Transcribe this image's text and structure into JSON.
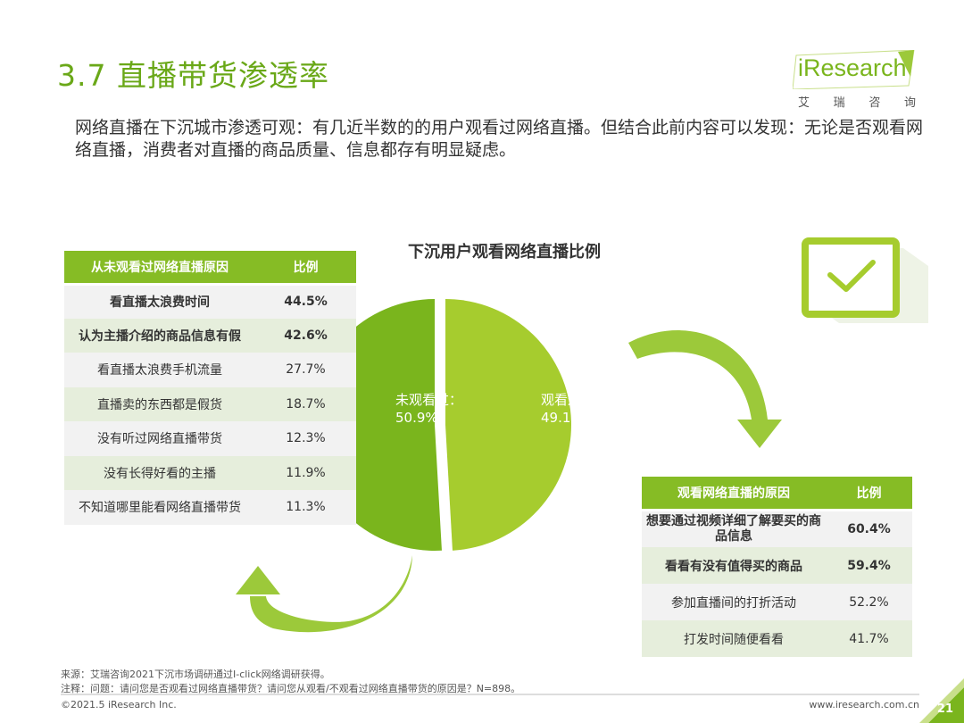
{
  "header": {
    "title": "3.7 直播带货渗透率",
    "logo_text": "iResearch",
    "logo_sub": [
      "艾",
      "瑞",
      "咨",
      "询"
    ]
  },
  "intro": "网络直播在下沉城市渗透可观：有几近半数的的用户观看过网络直播。但结合此前内容可以发现：无论是否观看网络直播，消费者对直播的商品质量、信息都存有明显疑虑。",
  "colors": {
    "brand_green": "#86bc25",
    "pie_dark": "#7ab51d",
    "pie_light": "#a6cc2e",
    "row_alt": "#e6eedc",
    "row_base": "#f2f2f2"
  },
  "left_table": {
    "headers": [
      "从未观看过网络直播原因",
      "比例"
    ],
    "rows": [
      {
        "reason": "看直播太浪费时间",
        "pct": "44.5%"
      },
      {
        "reason": "认为主播介绍的商品信息有假",
        "pct": "42.6%"
      },
      {
        "reason": "看直播太浪费手机流量",
        "pct": "27.7%"
      },
      {
        "reason": "直播卖的东西都是假货",
        "pct": "18.7%"
      },
      {
        "reason": "没有听过网络直播带货",
        "pct": "12.3%"
      },
      {
        "reason": "没有长得好看的主播",
        "pct": "11.9%"
      },
      {
        "reason": "不知道哪里能看网络直播带货",
        "pct": "11.3%"
      }
    ]
  },
  "right_table": {
    "headers": [
      "观看网络直播的原因",
      "比例"
    ],
    "rows": [
      {
        "reason": "想要通过视频详细了解要买的商品信息",
        "pct": "60.4%"
      },
      {
        "reason": "看看有没有值得买的商品",
        "pct": "59.4%"
      },
      {
        "reason": "参加直播间的打折活动",
        "pct": "52.2%"
      },
      {
        "reason": "打发时间随便看看",
        "pct": "41.7%"
      }
    ]
  },
  "chart_data": {
    "type": "pie",
    "title": "下沉用户观看网络直播比例",
    "slices": [
      {
        "label": "未观看过：",
        "value": 50.9,
        "display": "50.9%",
        "color": "#7ab51d"
      },
      {
        "label": "观看过：",
        "value": 49.1,
        "display": "49.1%",
        "color": "#a6cc2e"
      }
    ]
  },
  "footer": {
    "source": "来源：艾瑞咨询2021下沉市场调研通过I-click网络调研获得。",
    "note": "注释：问题：请问您是否观看过网络直播带货？请问您从观看/不观看过网络直播带货的原因是？N=898。",
    "copyright": "©2021.5 iResearch Inc.",
    "url": "www.iresearch.com.cn",
    "page": "21"
  }
}
